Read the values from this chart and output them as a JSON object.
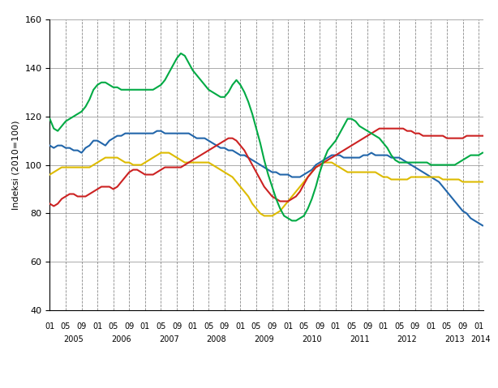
{
  "ylabel": "Indeksi (2010=100)",
  "ylim": [
    40,
    160
  ],
  "yticks": [
    40,
    60,
    80,
    100,
    120,
    140,
    160
  ],
  "colors": {
    "tekstiili": "#2266AA",
    "paperi": "#DDBB00",
    "kemia": "#CC2222",
    "metalli": "#00AA44"
  },
  "tekstiili": [
    108,
    107,
    108,
    108,
    107,
    107,
    106,
    106,
    105,
    107,
    108,
    110,
    110,
    109,
    108,
    110,
    111,
    112,
    112,
    113,
    113,
    113,
    113,
    113,
    113,
    113,
    113,
    114,
    114,
    113,
    113,
    113,
    113,
    113,
    113,
    113,
    112,
    111,
    111,
    111,
    110,
    109,
    108,
    107,
    107,
    106,
    106,
    105,
    104,
    104,
    103,
    102,
    101,
    100,
    99,
    98,
    97,
    97,
    96,
    96,
    96,
    95,
    95,
    95,
    96,
    97,
    98,
    100,
    101,
    102,
    103,
    104,
    104,
    104,
    103,
    103,
    103,
    103,
    103,
    104,
    104,
    105,
    104,
    104,
    104,
    104,
    103,
    103,
    103,
    102,
    101,
    100,
    99,
    98,
    97,
    96,
    95,
    94,
    93,
    91,
    89,
    87,
    85,
    83,
    81,
    80,
    78,
    77,
    76,
    75
  ],
  "paperi": [
    96,
    97,
    98,
    99,
    99,
    99,
    99,
    99,
    99,
    99,
    99,
    100,
    101,
    102,
    103,
    103,
    103,
    103,
    102,
    101,
    101,
    100,
    100,
    100,
    101,
    102,
    103,
    104,
    105,
    105,
    105,
    104,
    103,
    102,
    101,
    101,
    101,
    101,
    101,
    101,
    101,
    100,
    99,
    98,
    97,
    96,
    95,
    93,
    91,
    89,
    87,
    84,
    82,
    80,
    79,
    79,
    79,
    80,
    81,
    83,
    85,
    87,
    89,
    91,
    93,
    95,
    97,
    99,
    100,
    101,
    101,
    101,
    100,
    99,
    98,
    97,
    97,
    97,
    97,
    97,
    97,
    97,
    97,
    96,
    95,
    95,
    94,
    94,
    94,
    94,
    94,
    95,
    95,
    95,
    95,
    95,
    95,
    95,
    95,
    94,
    94,
    94,
    94,
    94,
    93,
    93,
    93,
    93,
    93,
    93
  ],
  "kemia": [
    84,
    83,
    84,
    86,
    87,
    88,
    88,
    87,
    87,
    87,
    88,
    89,
    90,
    91,
    91,
    91,
    90,
    91,
    93,
    95,
    97,
    98,
    98,
    97,
    96,
    96,
    96,
    97,
    98,
    99,
    99,
    99,
    99,
    99,
    100,
    101,
    102,
    103,
    104,
    105,
    106,
    107,
    108,
    109,
    110,
    111,
    111,
    110,
    108,
    106,
    103,
    100,
    97,
    94,
    91,
    89,
    87,
    86,
    85,
    85,
    85,
    86,
    87,
    89,
    92,
    95,
    97,
    99,
    100,
    101,
    102,
    103,
    104,
    105,
    106,
    107,
    108,
    109,
    110,
    111,
    112,
    113,
    114,
    115,
    115,
    115,
    115,
    115,
    115,
    115,
    114,
    114,
    113,
    113,
    112,
    112,
    112,
    112,
    112,
    112,
    111,
    111,
    111,
    111,
    111,
    112,
    112,
    112,
    112,
    112
  ],
  "metalli": [
    119,
    115,
    114,
    116,
    118,
    119,
    120,
    121,
    122,
    124,
    127,
    131,
    133,
    134,
    134,
    133,
    132,
    132,
    131,
    131,
    131,
    131,
    131,
    131,
    131,
    131,
    131,
    132,
    133,
    135,
    138,
    141,
    144,
    146,
    145,
    142,
    139,
    137,
    135,
    133,
    131,
    130,
    129,
    128,
    128,
    130,
    133,
    135,
    133,
    130,
    126,
    121,
    115,
    109,
    102,
    96,
    91,
    86,
    82,
    79,
    78,
    77,
    77,
    78,
    79,
    82,
    86,
    91,
    97,
    102,
    106,
    108,
    110,
    113,
    116,
    119,
    119,
    118,
    116,
    115,
    114,
    113,
    112,
    111,
    109,
    107,
    104,
    102,
    101,
    101,
    101,
    101,
    101,
    101,
    101,
    101,
    100,
    100,
    100,
    100,
    100,
    100,
    100,
    101,
    102,
    103,
    104,
    104,
    104,
    105
  ],
  "n_months": 110,
  "start_year": 2005,
  "grid_color": "#888888",
  "spine_color": "#000000"
}
